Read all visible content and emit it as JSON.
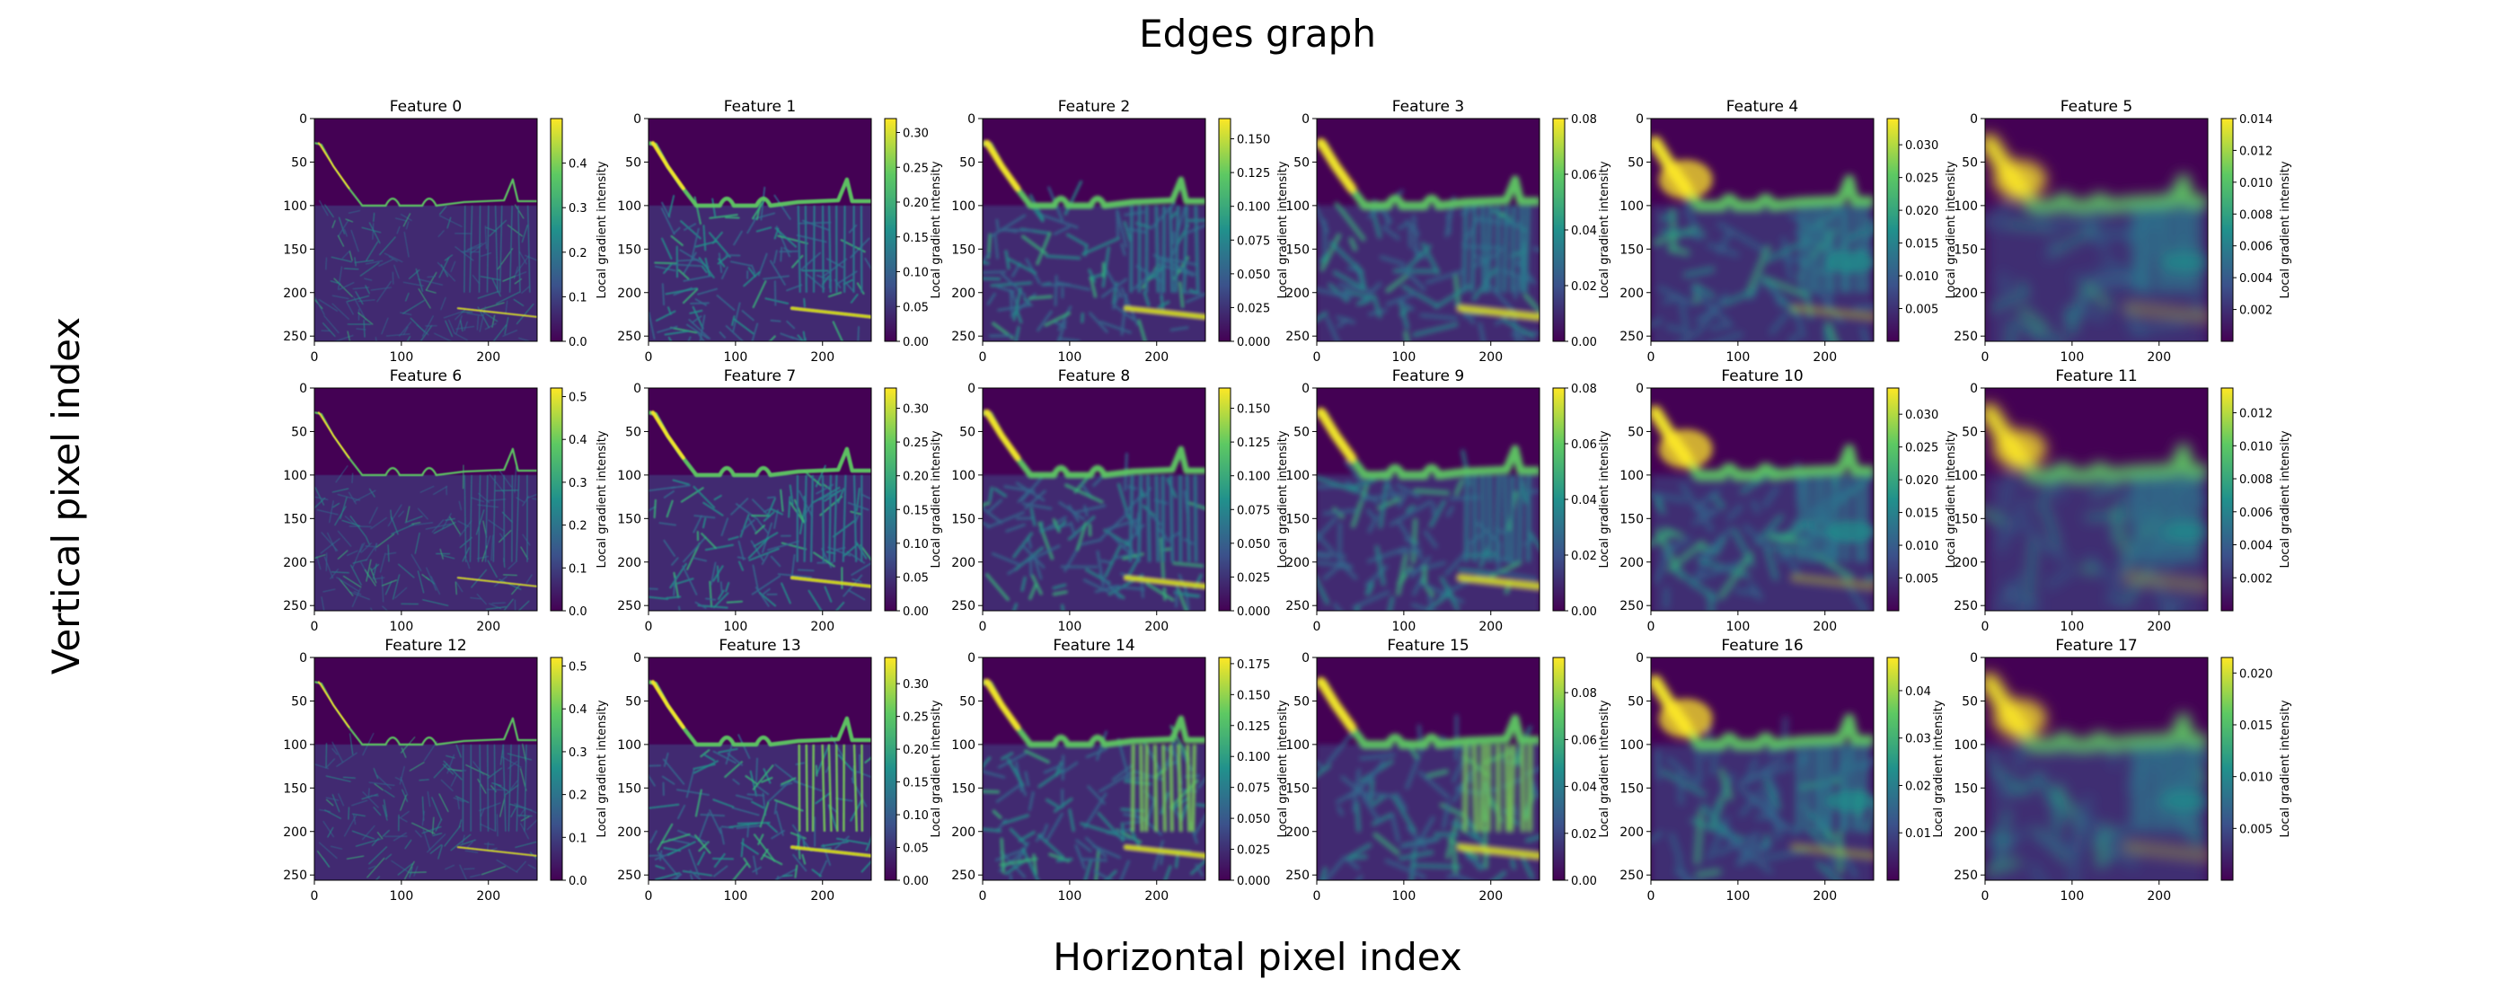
{
  "figure": {
    "title": "Edges graph",
    "xlabel": "Horizontal pixel index",
    "ylabel": "Vertical pixel index"
  },
  "chart_data": {
    "type": "heatmap",
    "colormap": "viridis",
    "colormap_stops": [
      "#440154",
      "#3b528b",
      "#21918c",
      "#5ec962",
      "#fde725"
    ],
    "grid": false,
    "rows": 3,
    "cols": 6,
    "image_extent": {
      "x": [
        0,
        256
      ],
      "y": [
        256,
        0
      ]
    },
    "x_ticks": [
      0,
      100,
      200
    ],
    "y_ticks": [
      0,
      50,
      100,
      150,
      200,
      250
    ],
    "colorbar_label": "Local gradient intensity",
    "panels": [
      {
        "title": "Feature 0",
        "range": [
          0,
          0.5
        ],
        "ticks": [
          "0.0",
          "0.1",
          "0.2",
          "0.3",
          "0.4"
        ],
        "blur": 0.6
      },
      {
        "title": "Feature 1",
        "range": [
          0,
          0.32
        ],
        "ticks": [
          "0.00",
          "0.05",
          "0.10",
          "0.15",
          "0.20",
          "0.25",
          "0.30"
        ],
        "blur": 0.9
      },
      {
        "title": "Feature 2",
        "range": [
          0,
          0.165
        ],
        "ticks": [
          "0.000",
          "0.025",
          "0.050",
          "0.075",
          "0.100",
          "0.125",
          "0.150"
        ],
        "blur": 1.6
      },
      {
        "title": "Feature 3",
        "range": [
          0,
          0.08
        ],
        "ticks": [
          "0.00",
          "0.02",
          "0.04",
          "0.06",
          "0.08"
        ],
        "blur": 2.6
      },
      {
        "title": "Feature 4",
        "range": [
          0,
          0.034
        ],
        "ticks": [
          "0.005",
          "0.010",
          "0.015",
          "0.020",
          "0.025",
          "0.030"
        ],
        "blur": 4.2
      },
      {
        "title": "Feature 5",
        "range": [
          0,
          0.014
        ],
        "ticks": [
          "0.002",
          "0.004",
          "0.006",
          "0.008",
          "0.010",
          "0.012",
          "0.014"
        ],
        "blur": 7.5
      },
      {
        "title": "Feature 6",
        "range": [
          0,
          0.52
        ],
        "ticks": [
          "0.0",
          "0.1",
          "0.2",
          "0.3",
          "0.4",
          "0.5"
        ],
        "blur": 0.6
      },
      {
        "title": "Feature 7",
        "range": [
          0,
          0.33
        ],
        "ticks": [
          "0.00",
          "0.05",
          "0.10",
          "0.15",
          "0.20",
          "0.25",
          "0.30"
        ],
        "blur": 0.9
      },
      {
        "title": "Feature 8",
        "range": [
          0,
          0.165
        ],
        "ticks": [
          "0.000",
          "0.025",
          "0.050",
          "0.075",
          "0.100",
          "0.125",
          "0.150"
        ],
        "blur": 1.6
      },
      {
        "title": "Feature 9",
        "range": [
          0,
          0.08
        ],
        "ticks": [
          "0.00",
          "0.02",
          "0.04",
          "0.06",
          "0.08"
        ],
        "blur": 2.6
      },
      {
        "title": "Feature 10",
        "range": [
          0,
          0.034
        ],
        "ticks": [
          "0.005",
          "0.010",
          "0.015",
          "0.020",
          "0.025",
          "0.030"
        ],
        "blur": 4.2
      },
      {
        "title": "Feature 11",
        "range": [
          0,
          0.0135
        ],
        "ticks": [
          "0.002",
          "0.004",
          "0.006",
          "0.008",
          "0.010",
          "0.012"
        ],
        "blur": 7.5
      },
      {
        "title": "Feature 12",
        "range": [
          0,
          0.52
        ],
        "ticks": [
          "0.0",
          "0.1",
          "0.2",
          "0.3",
          "0.4",
          "0.5"
        ],
        "blur": 0.6
      },
      {
        "title": "Feature 13",
        "range": [
          0,
          0.34
        ],
        "ticks": [
          "0.00",
          "0.05",
          "0.10",
          "0.15",
          "0.20",
          "0.25",
          "0.30"
        ],
        "blur": 0.9
      },
      {
        "title": "Feature 14",
        "range": [
          0,
          0.18
        ],
        "ticks": [
          "0.000",
          "0.025",
          "0.050",
          "0.075",
          "0.100",
          "0.125",
          "0.150",
          "0.175"
        ],
        "blur": 1.6
      },
      {
        "title": "Feature 15",
        "range": [
          0,
          0.095
        ],
        "ticks": [
          "0.00",
          "0.02",
          "0.04",
          "0.06",
          "0.08"
        ],
        "blur": 2.6
      },
      {
        "title": "Feature 16",
        "range": [
          0,
          0.047
        ],
        "ticks": [
          "0.01",
          "0.02",
          "0.03",
          "0.04"
        ],
        "blur": 4.2
      },
      {
        "title": "Feature 17",
        "range": [
          0,
          0.0215
        ],
        "ticks": [
          "0.005",
          "0.010",
          "0.015",
          "0.020"
        ],
        "blur": 7.5
      }
    ]
  }
}
